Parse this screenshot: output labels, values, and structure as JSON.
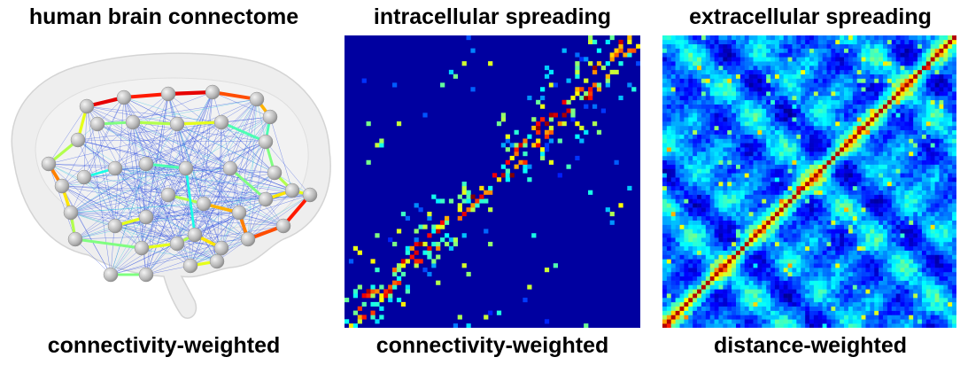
{
  "panels": [
    {
      "title": "human brain connectome",
      "caption": "connectivity-weighted"
    },
    {
      "title": "intracellular spreading",
      "caption": "connectivity-weighted"
    },
    {
      "title": "extracellular spreading",
      "caption": "distance-weighted"
    }
  ],
  "colormap": [
    "#00008f",
    "#0000ff",
    "#0080ff",
    "#00ffff",
    "#80ff80",
    "#ffff00",
    "#ff8000",
    "#ff0000",
    "#800000"
  ],
  "brain": {
    "outline_color": "#e4e4e4",
    "node_color": "#b4b4b4"
  }
}
